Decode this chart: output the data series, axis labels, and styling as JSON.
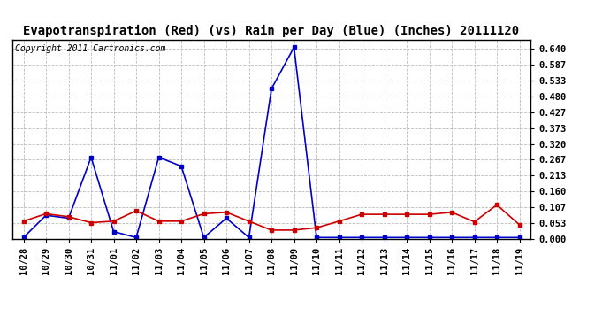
{
  "title": "Evapotranspiration (Red) (vs) Rain per Day (Blue) (Inches) 20111120",
  "copyright": "Copyright 2011 Cartronics.com",
  "labels": [
    "10/28",
    "10/29",
    "10/30",
    "10/31",
    "11/01",
    "11/02",
    "11/03",
    "11/04",
    "11/05",
    "11/06",
    "11/07",
    "11/08",
    "11/09",
    "11/10",
    "11/11",
    "11/12",
    "11/13",
    "11/14",
    "11/15",
    "11/16",
    "11/17",
    "11/18",
    "11/19"
  ],
  "rain": [
    0.005,
    0.08,
    0.07,
    0.275,
    0.025,
    0.005,
    0.275,
    0.245,
    0.005,
    0.07,
    0.005,
    0.505,
    0.645,
    0.005,
    0.005,
    0.005,
    0.005,
    0.005,
    0.005,
    0.005,
    0.005,
    0.005,
    0.005
  ],
  "et": [
    0.06,
    0.085,
    0.075,
    0.055,
    0.06,
    0.095,
    0.06,
    0.06,
    0.085,
    0.09,
    0.06,
    0.03,
    0.03,
    0.038,
    0.06,
    0.083,
    0.083,
    0.083,
    0.083,
    0.09,
    0.058,
    0.115,
    0.048
  ],
  "yticks": [
    0.0,
    0.053,
    0.107,
    0.16,
    0.213,
    0.267,
    0.32,
    0.373,
    0.427,
    0.48,
    0.533,
    0.587,
    0.64
  ],
  "ymax": 0.67,
  "bg_color": "#ffffff",
  "plot_bg": "#ffffff",
  "grid_color": "#bbbbbb",
  "blue": "#0000cc",
  "red": "#cc0000",
  "title_fontsize": 10,
  "copyright_fontsize": 7,
  "tick_fontsize": 7.5,
  "marker_size": 3
}
